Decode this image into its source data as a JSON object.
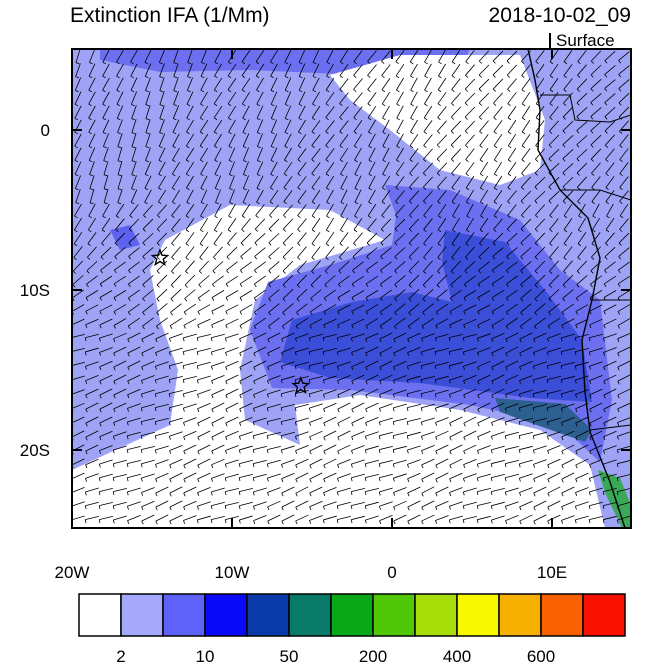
{
  "header": {
    "title": "Extinction IFA (1/Mm)",
    "date": "2018-10-02_09",
    "level": "Surface"
  },
  "map": {
    "lon_ticks": [
      {
        "value": -20,
        "label": "20W"
      },
      {
        "value": -10,
        "label": "10W"
      },
      0,
      {
        "value": 10,
        "label": "10E"
      }
    ],
    "lat_ticks": [
      0,
      {
        "value": -10,
        "label": "10S"
      },
      {
        "value": -20,
        "label": "20S"
      }
    ],
    "markers": [
      {
        "lon": -14.5,
        "lat": -8
      },
      {
        "lon": -5.7,
        "lat": -16
      }
    ]
  },
  "colorbar": {
    "labels": [
      2,
      10,
      50,
      200,
      400,
      600
    ],
    "colors": [
      "#ffffff",
      "#a6a8fc",
      "#5e62f8",
      "#0a0af8",
      "#0a3aa8",
      "#087a68",
      "#08a818",
      "#50c808",
      "#a8dc08",
      "#f8f800",
      "#f8b000",
      "#f86000",
      "#f81000"
    ]
  }
}
